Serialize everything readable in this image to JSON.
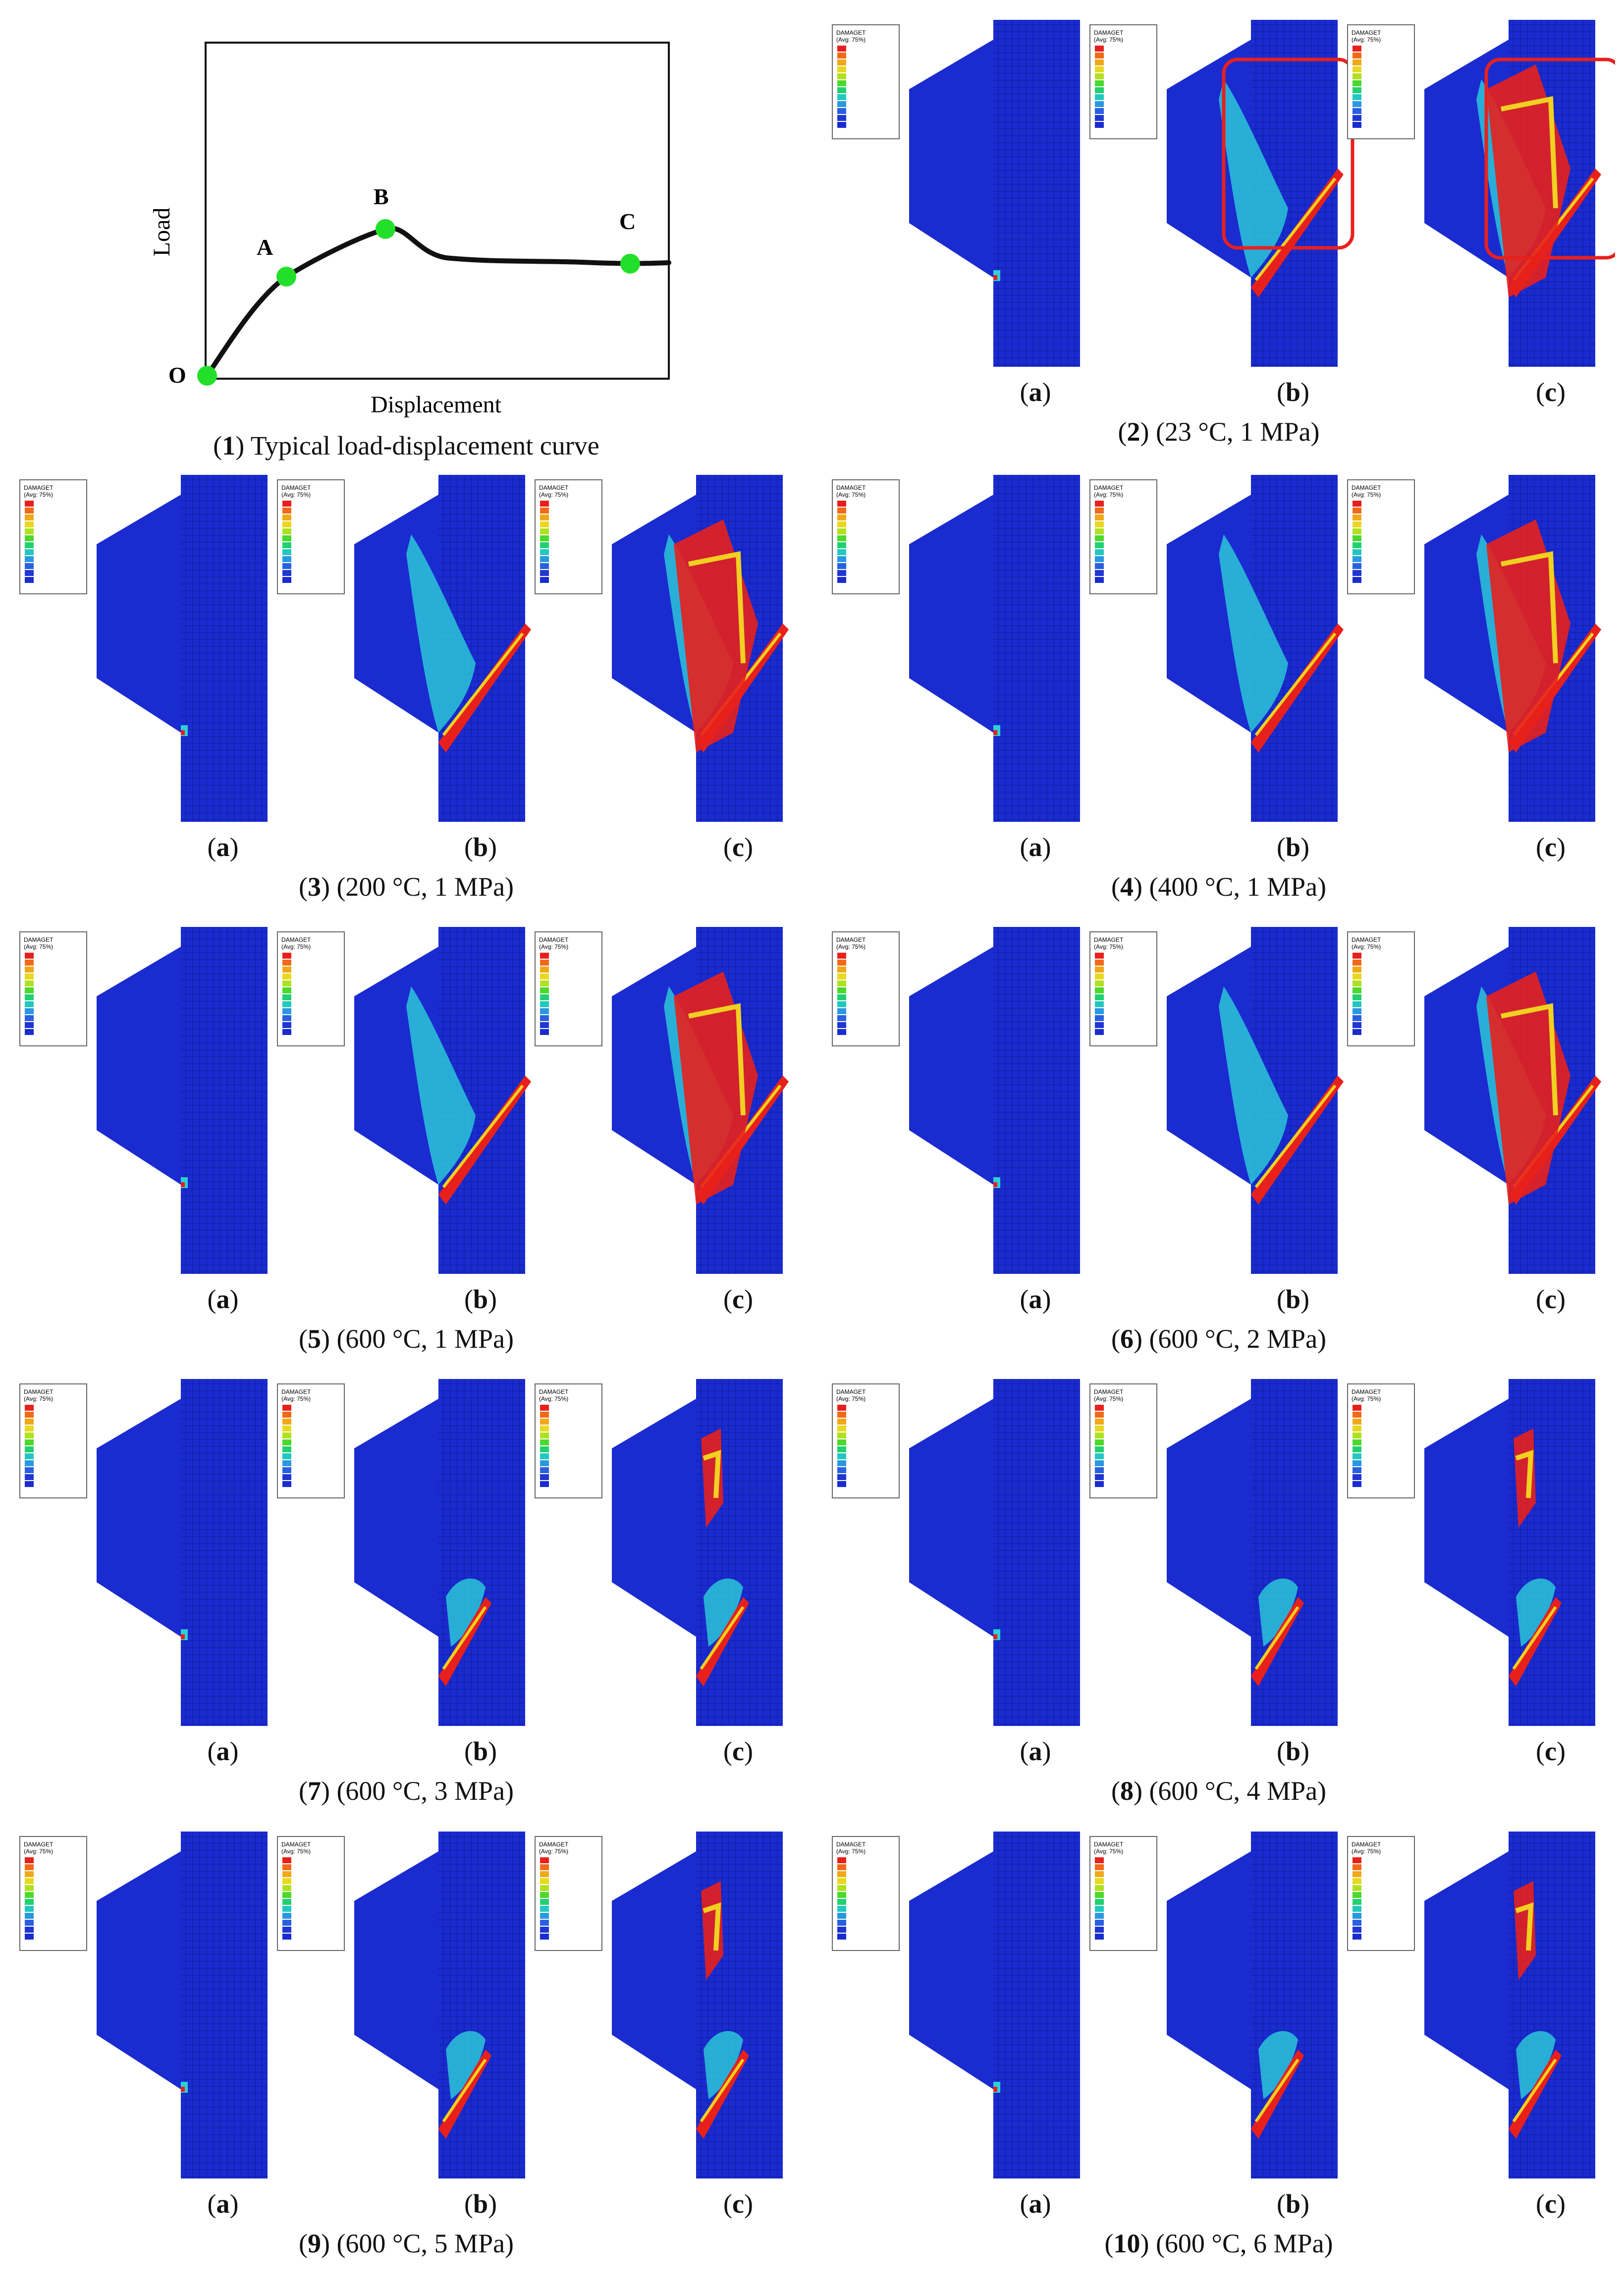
{
  "figure": {
    "curve": {
      "caption_num": "1",
      "caption_text": "Typical load-displacement curve",
      "ylabel": "Load",
      "xlabel": "Displacement",
      "points": [
        "O",
        "A",
        "B",
        "C"
      ],
      "point_color": "#22e02a"
    },
    "legend": {
      "title": "DAMAGET",
      "avg": "(Avg: 75%)"
    },
    "sub_labels": [
      "a",
      "b",
      "c"
    ],
    "panels": [
      {
        "id": "2",
        "conditions": "(23 °C, 1 MPa)"
      },
      {
        "id": "3",
        "conditions": "(200 °C, 1 MPa)"
      },
      {
        "id": "4",
        "conditions": "(400 °C, 1 MPa)"
      },
      {
        "id": "5",
        "conditions": "(600 °C, 1 MPa)"
      },
      {
        "id": "6",
        "conditions": "(600 °C, 2 MPa)"
      },
      {
        "id": "7",
        "conditions": "(600 °C, 3 MPa)"
      },
      {
        "id": "8",
        "conditions": "(600 °C, 4 MPa)"
      },
      {
        "id": "9",
        "conditions": "(600 °C, 5 MPa)"
      },
      {
        "id": "10",
        "conditions": "(600 °C, 6 MPa)"
      }
    ],
    "colors": {
      "mesh": "#1a2bd0",
      "damage_high": "#e8201c",
      "damage_mid": "#f0d020",
      "damage_low": "#2ccfd8",
      "highlight_box": "#e8201c"
    }
  }
}
